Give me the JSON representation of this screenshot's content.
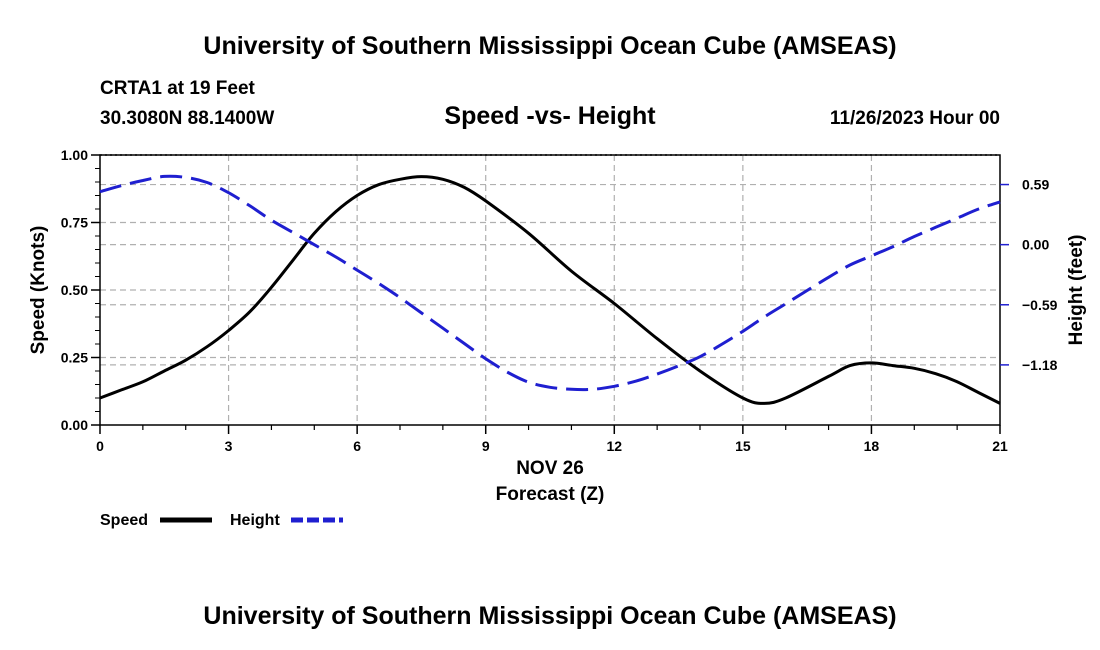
{
  "page": {
    "title_top": "University of Southern Mississippi Ocean Cube (AMSEAS)",
    "title_bottom": "University of Southern Mississippi Ocean Cube (AMSEAS)",
    "station": "CRTA1 at 19 Feet",
    "coords": "30.3080N  88.1400W",
    "datetime": "11/26/2023 Hour 00"
  },
  "colors": {
    "speed": "#000000",
    "height": "#1f1fd0",
    "grid": "#b0b0b0"
  },
  "chart_data": {
    "type": "line",
    "title": "Speed -vs- Height",
    "xlabel": "Forecast (Z)",
    "xdate": "NOV 26",
    "ylabel": "Speed (Knots)",
    "y2label": "Height (feet)",
    "xlim": [
      0,
      21
    ],
    "ylim": [
      0,
      1
    ],
    "y2lim": [
      -1.77,
      0.88
    ],
    "xticks": [
      0,
      3,
      6,
      9,
      12,
      15,
      18,
      21
    ],
    "xtick_labels": [
      "0",
      "3",
      "6",
      "9",
      "12",
      "15",
      "18",
      "21"
    ],
    "yticks": [
      0,
      0.25,
      0.5,
      0.75,
      1.0
    ],
    "ytick_labels": [
      "0.00",
      "0.25",
      "0.50",
      "0.75",
      "1.00"
    ],
    "y2ticks": [
      0.59,
      0,
      -0.59,
      -1.18
    ],
    "y2tick_labels": [
      "0.59",
      "0.00",
      "−0.59",
      "−1.18"
    ],
    "series": [
      {
        "name": "Speed",
        "axis": "left",
        "style": "solid",
        "x": [
          0,
          0.5,
          1,
          1.5,
          2,
          2.5,
          3,
          3.5,
          4,
          4.5,
          5,
          5.5,
          6,
          6.5,
          7,
          7.5,
          8,
          8.5,
          9,
          10,
          11,
          12,
          13,
          14,
          15,
          15.5,
          16,
          17,
          17.5,
          18,
          18.5,
          19,
          19.5,
          20,
          20.5,
          21
        ],
        "values": [
          0.1,
          0.13,
          0.16,
          0.2,
          0.24,
          0.29,
          0.35,
          0.42,
          0.51,
          0.61,
          0.71,
          0.79,
          0.85,
          0.89,
          0.91,
          0.92,
          0.91,
          0.88,
          0.83,
          0.71,
          0.57,
          0.45,
          0.32,
          0.2,
          0.1,
          0.08,
          0.1,
          0.18,
          0.22,
          0.23,
          0.22,
          0.21,
          0.19,
          0.16,
          0.12,
          0.08
        ]
      },
      {
        "name": "Height",
        "axis": "right",
        "style": "dashed",
        "x": [
          0,
          0.5,
          1,
          1.5,
          2,
          2.5,
          3,
          3.5,
          4,
          4.5,
          5,
          5.5,
          6,
          6.5,
          7,
          7.5,
          8,
          8.5,
          9,
          9.5,
          10,
          10.5,
          11,
          11.5,
          12,
          12.5,
          13,
          13.5,
          14,
          14.5,
          15,
          15.5,
          16,
          16.5,
          17,
          17.5,
          18,
          18.5,
          19,
          19.5,
          20,
          20.5,
          21
        ],
        "values": [
          0.52,
          0.58,
          0.63,
          0.67,
          0.66,
          0.61,
          0.51,
          0.38,
          0.24,
          0.12,
          0.0,
          -0.12,
          -0.25,
          -0.38,
          -0.52,
          -0.67,
          -0.82,
          -0.97,
          -1.12,
          -1.25,
          -1.35,
          -1.4,
          -1.42,
          -1.42,
          -1.39,
          -1.34,
          -1.27,
          -1.19,
          -1.1,
          -0.98,
          -0.85,
          -0.71,
          -0.58,
          -0.45,
          -0.32,
          -0.2,
          -0.11,
          -0.02,
          0.08,
          0.17,
          0.26,
          0.35,
          0.42
        ]
      }
    ],
    "legend": [
      {
        "label": "Speed",
        "series": "Speed"
      },
      {
        "label": "Height",
        "series": "Height"
      }
    ]
  }
}
